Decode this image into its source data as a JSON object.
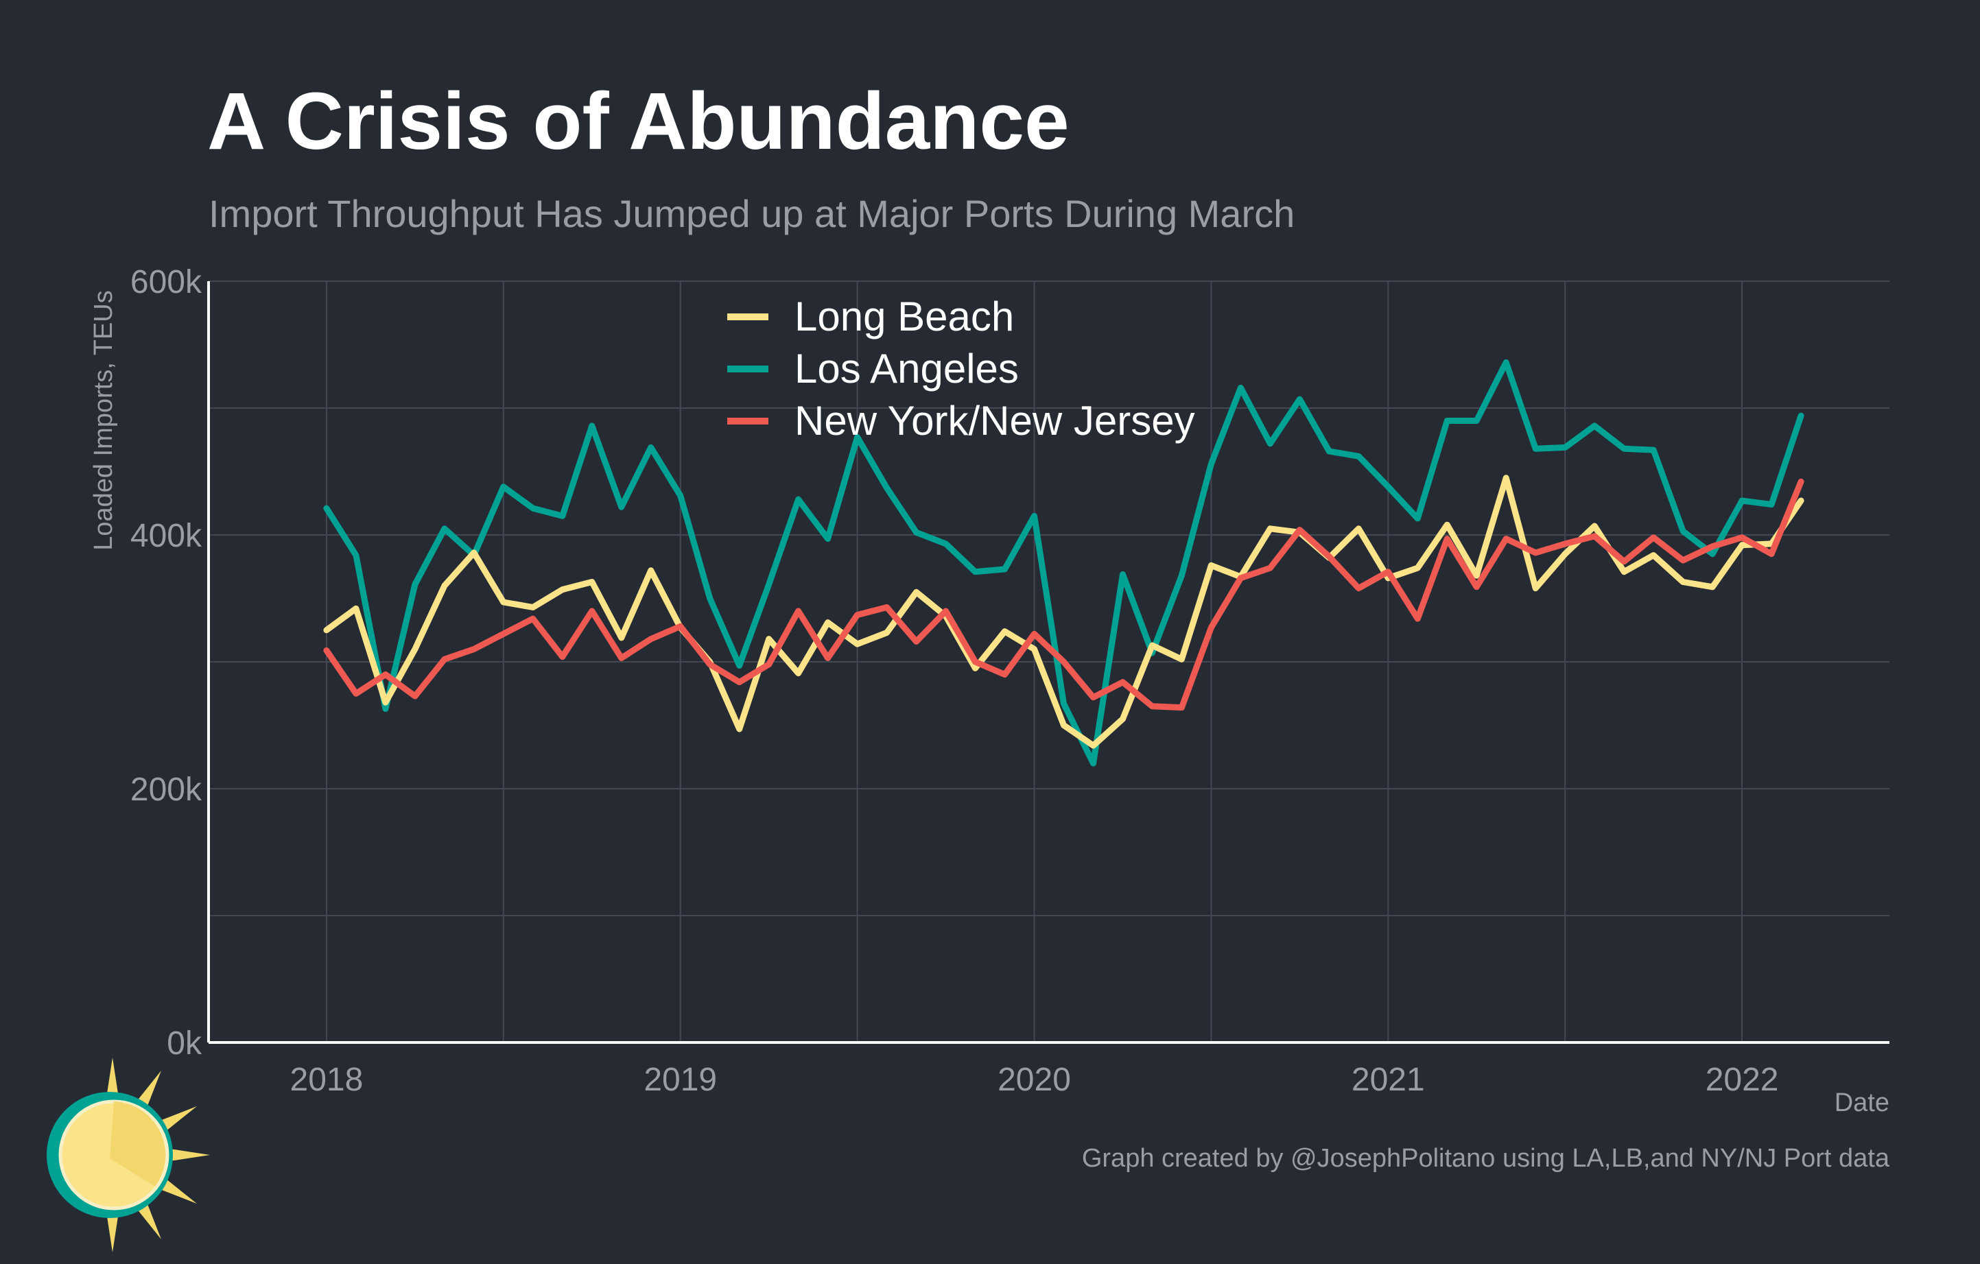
{
  "title": "A Crisis of Abundance",
  "subtitle": "Import Throughput Has Jumped up at Major Ports During March",
  "caption": "Graph created by @JosephPolitano using LA,LB,and NY/NJ Port data",
  "colors": {
    "background": "#252a33",
    "grid": "#434852",
    "axis": "#ffffff",
    "text_muted": "#9a9da3",
    "sun_ring": "#00a294",
    "sun_fill": "#fbe38a",
    "sun_ray": "#f3d86a"
  },
  "chart_data": {
    "type": "line",
    "title": "A Crisis of Abundance",
    "subtitle": "Import Throughput Has Jumped up at Major Ports During March",
    "xlabel": "Date",
    "ylabel": "Loaded Imports, TEUs",
    "x_start": "2018-01",
    "x_end": "2022-03",
    "xlim": [
      "2017-09",
      "2022-06"
    ],
    "ylim": [
      0,
      600000
    ],
    "x_ticks": [
      "2018",
      "2019",
      "2020",
      "2021",
      "2022"
    ],
    "y_ticks": [
      "0k",
      "200k",
      "400k",
      "600k"
    ],
    "grid": true,
    "legend_position": "top-center",
    "series": [
      {
        "name": "Long Beach",
        "color": "#fbe38a",
        "values": [
          325000,
          342000,
          268000,
          310000,
          360000,
          386000,
          347000,
          343000,
          357000,
          363000,
          319000,
          372000,
          327000,
          300000,
          247000,
          318000,
          291000,
          331000,
          314000,
          323000,
          355000,
          336000,
          295000,
          324000,
          310000,
          250000,
          234000,
          255000,
          313000,
          302000,
          376000,
          367000,
          405000,
          402000,
          382000,
          405000,
          366000,
          374000,
          408000,
          368000,
          445000,
          358000,
          385000,
          407000,
          371000,
          384000,
          363000,
          359000,
          392000,
          393000,
          427000
        ]
      },
      {
        "name": "Los Angeles",
        "color": "#00a294",
        "values": [
          421000,
          384000,
          263000,
          361000,
          405000,
          384000,
          438000,
          421000,
          415000,
          486000,
          422000,
          469000,
          431000,
          350000,
          297000,
          361000,
          428000,
          397000,
          477000,
          437000,
          402000,
          393000,
          371000,
          373000,
          415000,
          267000,
          220000,
          369000,
          307000,
          368000,
          456000,
          516000,
          472000,
          507000,
          466000,
          462000,
          438000,
          413000,
          490000,
          490000,
          536000,
          468000,
          469000,
          486000,
          468000,
          467000,
          403000,
          385000,
          427000,
          424000,
          494000
        ]
      },
      {
        "name": "New York/New Jersey",
        "color": "#ee5a52",
        "values": [
          309000,
          275000,
          290000,
          273000,
          302000,
          310000,
          322000,
          334000,
          304000,
          340000,
          303000,
          318000,
          328000,
          298000,
          284000,
          298000,
          340000,
          303000,
          337000,
          343000,
          316000,
          340000,
          300000,
          290000,
          322000,
          300000,
          272000,
          284000,
          265000,
          264000,
          327000,
          366000,
          374000,
          404000,
          383000,
          358000,
          371000,
          334000,
          397000,
          359000,
          397000,
          386000,
          393000,
          399000,
          379000,
          398000,
          380000,
          391000,
          398000,
          385000,
          442000
        ]
      }
    ]
  }
}
